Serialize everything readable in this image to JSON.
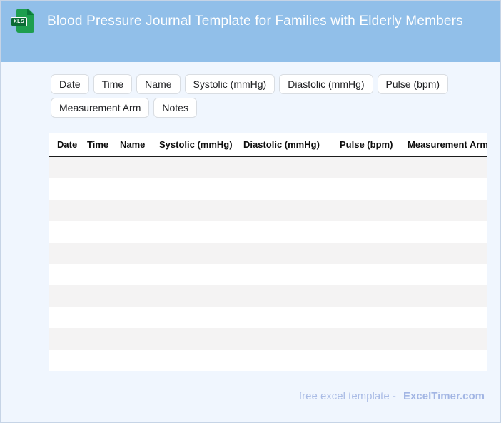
{
  "header": {
    "title": "Blood Pressure Journal Template for Families with Elderly Members",
    "file_icon_label": "XLS"
  },
  "chips": [
    {
      "label": "Date"
    },
    {
      "label": "Time"
    },
    {
      "label": "Name"
    },
    {
      "label": "Systolic (mmHg)"
    },
    {
      "label": "Diastolic (mmHg)"
    },
    {
      "label": "Pulse (bpm)"
    },
    {
      "label": "Measurement Arm"
    },
    {
      "label": "Notes"
    }
  ],
  "table": {
    "columns": [
      "Date",
      "Time",
      "Name",
      "Systolic (mmHg)",
      "Diastolic (mmHg)",
      "Pulse (bpm)",
      "Measurement Arm"
    ],
    "empty_row_count": 10
  },
  "footer": {
    "credit": "free excel template -",
    "brand": "ExcelTimer.com"
  },
  "colors": {
    "header_bg": "#91BFE9",
    "page_bg": "#F0F6FE",
    "row_stripe": "#F4F3F3",
    "table_header_border": "#1C1C1C",
    "footer_text": "#A9BBE5",
    "icon_green": "#1E9E4E",
    "icon_badge_green": "#0B6B34"
  }
}
